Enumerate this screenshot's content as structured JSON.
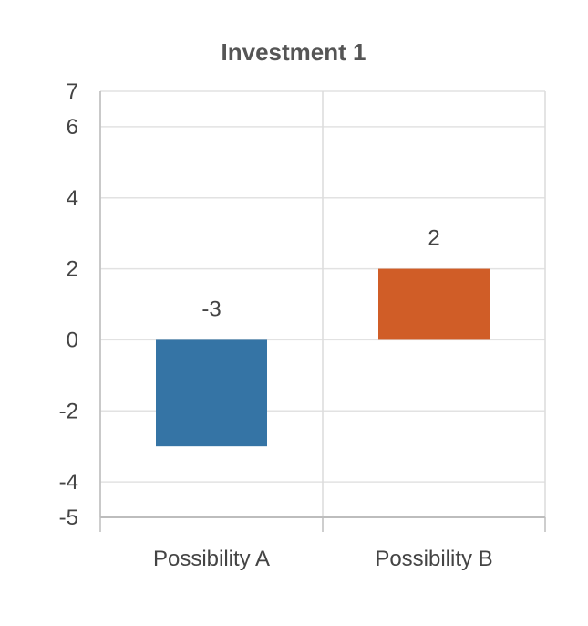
{
  "chart_data": {
    "type": "bar",
    "title": "Investment 1",
    "xlabel": "",
    "ylabel": "",
    "categories": [
      "Possibility A",
      "Possibility B"
    ],
    "values": [
      -3,
      2
    ],
    "data_labels": [
      "-3",
      "2"
    ],
    "bar_colors": [
      "#3574a5",
      "#d05d27"
    ],
    "ylim": [
      -5,
      7
    ],
    "yticks": [
      -5,
      -4,
      -2,
      0,
      2,
      4,
      6,
      7
    ],
    "ytick_labels": [
      "-5",
      "-4",
      "-2",
      "0",
      "2",
      "4",
      "6",
      "7"
    ],
    "grid": true,
    "legend": "none"
  }
}
